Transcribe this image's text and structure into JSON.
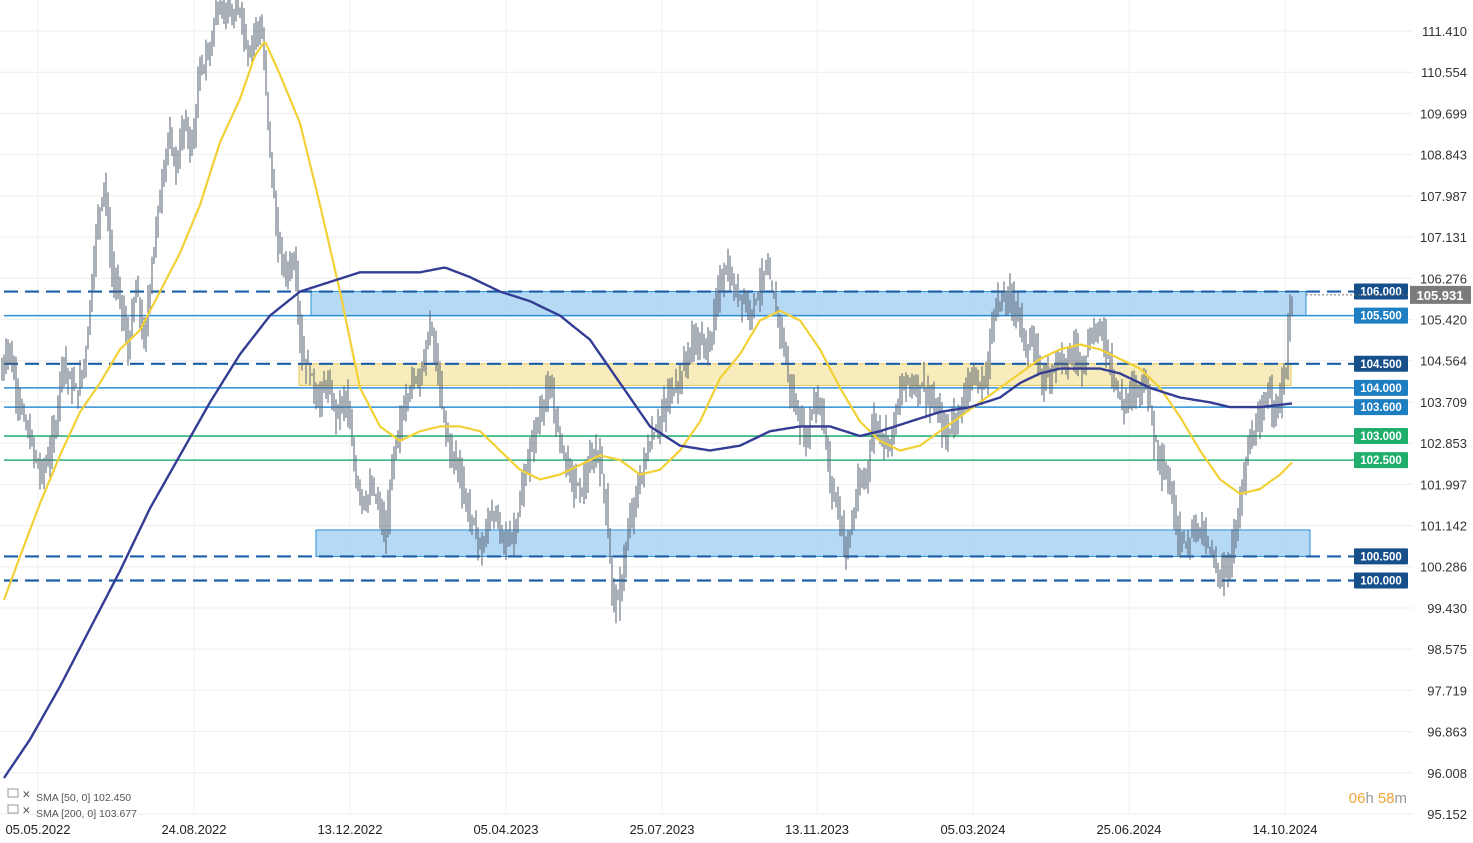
{
  "chart_data": {
    "type": "line",
    "title": "",
    "xlabel": "",
    "ylabel": "",
    "ylim": [
      95.152,
      111.8
    ],
    "y_axis_side": "right",
    "grid": true,
    "x_tick_labels": [
      "05.05.2022",
      "24.08.2022",
      "13.12.2022",
      "05.04.2023",
      "25.07.2023",
      "13.11.2023",
      "05.03.2024",
      "25.06.2024",
      "14.10.2024"
    ],
    "y_tick_labels": [
      111.41,
      110.554,
      109.699,
      108.843,
      107.987,
      107.131,
      106.276,
      105.42,
      104.564,
      103.709,
      102.853,
      101.997,
      101.142,
      100.286,
      99.43,
      98.575,
      97.719,
      96.863,
      96.008,
      95.152
    ],
    "y_tick_text": [
      "111.410",
      "110.554",
      "109.699",
      "108.843",
      "107.987",
      "107.131",
      "106.276",
      "105.420",
      "104.564",
      "103.709",
      "102.853",
      "101.997",
      "101.142",
      "100.286",
      "99.430",
      "98.575",
      "97.719",
      "96.863",
      "96.008",
      "95.152"
    ],
    "last_price": 105.931,
    "last_price_text": "105.931",
    "price_series": {
      "name": "",
      "anchors": [
        [
          0,
          104.2
        ],
        [
          8,
          104.9
        ],
        [
          16,
          104.0
        ],
        [
          24,
          103.3
        ],
        [
          32,
          102.8
        ],
        [
          40,
          102.2
        ],
        [
          48,
          102.5
        ],
        [
          56,
          103.3
        ],
        [
          62,
          104.6
        ],
        [
          70,
          104.1
        ],
        [
          78,
          103.9
        ],
        [
          86,
          104.8
        ],
        [
          96,
          107.2
        ],
        [
          104,
          108.3
        ],
        [
          112,
          106.4
        ],
        [
          120,
          105.9
        ],
        [
          128,
          104.8
        ],
        [
          136,
          106.1
        ],
        [
          144,
          104.9
        ],
        [
          152,
          106.6
        ],
        [
          160,
          108.0
        ],
        [
          168,
          109.2
        ],
        [
          176,
          108.6
        ],
        [
          184,
          109.5
        ],
        [
          192,
          109.0
        ],
        [
          200,
          110.6
        ],
        [
          208,
          110.9
        ],
        [
          216,
          111.8
        ],
        [
          224,
          112.0
        ],
        [
          232,
          111.6
        ],
        [
          240,
          111.9
        ],
        [
          248,
          110.9
        ],
        [
          256,
          111.5
        ],
        [
          262,
          111.3
        ],
        [
          270,
          108.9
        ],
        [
          278,
          106.9
        ],
        [
          286,
          106.4
        ],
        [
          294,
          106.7
        ],
        [
          302,
          104.7
        ],
        [
          310,
          104.3
        ],
        [
          318,
          103.7
        ],
        [
          326,
          104.1
        ],
        [
          336,
          103.5
        ],
        [
          346,
          103.8
        ],
        [
          356,
          102.1
        ],
        [
          364,
          101.6
        ],
        [
          372,
          101.9
        ],
        [
          380,
          101.4
        ],
        [
          386,
          100.9
        ],
        [
          392,
          102.4
        ],
        [
          398,
          103.0
        ],
        [
          406,
          103.8
        ],
        [
          414,
          104.2
        ],
        [
          422,
          104.4
        ],
        [
          430,
          105.3
        ],
        [
          436,
          104.6
        ],
        [
          442,
          103.6
        ],
        [
          450,
          102.7
        ],
        [
          458,
          102.4
        ],
        [
          466,
          101.6
        ],
        [
          474,
          101.1
        ],
        [
          482,
          100.6
        ],
        [
          490,
          101.4
        ],
        [
          498,
          101.2
        ],
        [
          506,
          100.8
        ],
        [
          514,
          101.0
        ],
        [
          522,
          101.8
        ],
        [
          530,
          102.7
        ],
        [
          538,
          103.3
        ],
        [
          546,
          103.9
        ],
        [
          552,
          103.8
        ],
        [
          558,
          103.1
        ],
        [
          566,
          102.5
        ],
        [
          574,
          102.0
        ],
        [
          582,
          101.9
        ],
        [
          590,
          102.4
        ],
        [
          598,
          102.7
        ],
        [
          606,
          101.6
        ],
        [
          612,
          99.8
        ],
        [
          618,
          99.5
        ],
        [
          624,
          100.4
        ],
        [
          630,
          101.2
        ],
        [
          638,
          101.9
        ],
        [
          646,
          102.6
        ],
        [
          654,
          103.1
        ],
        [
          662,
          103.4
        ],
        [
          670,
          103.9
        ],
        [
          678,
          104.1
        ],
        [
          686,
          104.6
        ],
        [
          694,
          105.0
        ],
        [
          702,
          104.9
        ],
        [
          710,
          104.9
        ],
        [
          718,
          106.0
        ],
        [
          726,
          106.5
        ],
        [
          734,
          106.0
        ],
        [
          742,
          105.9
        ],
        [
          750,
          105.6
        ],
        [
          758,
          106.0
        ],
        [
          766,
          106.5
        ],
        [
          774,
          105.8
        ],
        [
          782,
          105.1
        ],
        [
          790,
          104.0
        ],
        [
          798,
          103.4
        ],
        [
          806,
          102.9
        ],
        [
          814,
          103.8
        ],
        [
          822,
          103.5
        ],
        [
          830,
          102.1
        ],
        [
          838,
          101.5
        ],
        [
          846,
          100.6
        ],
        [
          852,
          101.2
        ],
        [
          858,
          101.9
        ],
        [
          866,
          102.2
        ],
        [
          874,
          103.3
        ],
        [
          882,
          103.0
        ],
        [
          890,
          102.9
        ],
        [
          898,
          103.7
        ],
        [
          906,
          104.2
        ],
        [
          914,
          104.0
        ],
        [
          922,
          104.1
        ],
        [
          930,
          103.7
        ],
        [
          938,
          103.5
        ],
        [
          946,
          103.0
        ],
        [
          954,
          103.4
        ],
        [
          962,
          103.6
        ],
        [
          970,
          104.3
        ],
        [
          978,
          104.0
        ],
        [
          986,
          104.2
        ],
        [
          994,
          105.7
        ],
        [
          1002,
          105.8
        ],
        [
          1010,
          105.9
        ],
        [
          1018,
          105.6
        ],
        [
          1026,
          104.8
        ],
        [
          1034,
          104.9
        ],
        [
          1042,
          104.2
        ],
        [
          1050,
          104.3
        ],
        [
          1058,
          104.7
        ],
        [
          1066,
          104.5
        ],
        [
          1074,
          104.8
        ],
        [
          1082,
          104.5
        ],
        [
          1090,
          105.0
        ],
        [
          1098,
          105.3
        ],
        [
          1106,
          104.9
        ],
        [
          1114,
          104.2
        ],
        [
          1122,
          103.6
        ],
        [
          1130,
          103.9
        ],
        [
          1138,
          104.0
        ],
        [
          1146,
          104.2
        ],
        [
          1154,
          103.0
        ],
        [
          1162,
          102.4
        ],
        [
          1170,
          101.9
        ],
        [
          1178,
          101.0
        ],
        [
          1186,
          100.7
        ],
        [
          1194,
          101.2
        ],
        [
          1202,
          101.0
        ],
        [
          1210,
          100.6
        ],
        [
          1218,
          100.2
        ],
        [
          1226,
          100.1
        ],
        [
          1232,
          100.7
        ],
        [
          1238,
          101.3
        ],
        [
          1244,
          102.2
        ],
        [
          1250,
          102.9
        ],
        [
          1256,
          103.1
        ],
        [
          1262,
          103.4
        ],
        [
          1268,
          104.0
        ],
        [
          1274,
          103.6
        ],
        [
          1280,
          103.8
        ],
        [
          1286,
          104.4
        ],
        [
          1290,
          105.7
        ],
        [
          1292,
          105.931
        ]
      ]
    },
    "sma_series": [
      {
        "name": "SMA [50, 0]",
        "legend_text": "SMA [50, 0] 102.450",
        "color": "#f2d136",
        "anchors": [
          [
            4,
            99.6
          ],
          [
            20,
            100.5
          ],
          [
            40,
            101.6
          ],
          [
            60,
            102.6
          ],
          [
            80,
            103.5
          ],
          [
            100,
            104.1
          ],
          [
            120,
            104.8
          ],
          [
            140,
            105.2
          ],
          [
            160,
            106.0
          ],
          [
            180,
            106.8
          ],
          [
            200,
            107.8
          ],
          [
            220,
            109.1
          ],
          [
            240,
            110.0
          ],
          [
            255,
            110.9
          ],
          [
            265,
            111.2
          ],
          [
            280,
            110.5
          ],
          [
            300,
            109.5
          ],
          [
            320,
            107.8
          ],
          [
            340,
            106.0
          ],
          [
            360,
            104.0
          ],
          [
            380,
            103.2
          ],
          [
            400,
            102.9
          ],
          [
            420,
            103.1
          ],
          [
            440,
            103.2
          ],
          [
            460,
            103.2
          ],
          [
            480,
            103.1
          ],
          [
            500,
            102.7
          ],
          [
            520,
            102.3
          ],
          [
            540,
            102.1
          ],
          [
            560,
            102.2
          ],
          [
            580,
            102.4
          ],
          [
            600,
            102.6
          ],
          [
            620,
            102.5
          ],
          [
            640,
            102.2
          ],
          [
            660,
            102.3
          ],
          [
            680,
            102.7
          ],
          [
            700,
            103.3
          ],
          [
            720,
            104.2
          ],
          [
            740,
            104.7
          ],
          [
            760,
            105.4
          ],
          [
            780,
            105.6
          ],
          [
            800,
            105.4
          ],
          [
            820,
            104.8
          ],
          [
            840,
            104.0
          ],
          [
            860,
            103.3
          ],
          [
            880,
            102.9
          ],
          [
            900,
            102.7
          ],
          [
            920,
            102.8
          ],
          [
            940,
            103.1
          ],
          [
            960,
            103.4
          ],
          [
            980,
            103.7
          ],
          [
            1000,
            104.0
          ],
          [
            1020,
            104.3
          ],
          [
            1040,
            104.6
          ],
          [
            1060,
            104.8
          ],
          [
            1080,
            104.9
          ],
          [
            1100,
            104.8
          ],
          [
            1120,
            104.6
          ],
          [
            1140,
            104.4
          ],
          [
            1160,
            104.0
          ],
          [
            1180,
            103.4
          ],
          [
            1200,
            102.7
          ],
          [
            1220,
            102.1
          ],
          [
            1240,
            101.8
          ],
          [
            1260,
            101.9
          ],
          [
            1280,
            102.2
          ],
          [
            1292,
            102.45
          ]
        ]
      },
      {
        "name": "SMA [200, 0]",
        "legend_text": "SMA [200, 0] 103.677",
        "color": "#343d94",
        "anchors": [
          [
            4,
            95.9
          ],
          [
            30,
            96.7
          ],
          [
            60,
            97.8
          ],
          [
            90,
            99.0
          ],
          [
            120,
            100.2
          ],
          [
            150,
            101.5
          ],
          [
            180,
            102.6
          ],
          [
            210,
            103.7
          ],
          [
            240,
            104.7
          ],
          [
            270,
            105.5
          ],
          [
            300,
            106.0
          ],
          [
            330,
            106.2
          ],
          [
            360,
            106.4
          ],
          [
            390,
            106.4
          ],
          [
            420,
            106.4
          ],
          [
            445,
            106.5
          ],
          [
            470,
            106.3
          ],
          [
            500,
            106.0
          ],
          [
            530,
            105.8
          ],
          [
            560,
            105.5
          ],
          [
            590,
            105.0
          ],
          [
            620,
            104.1
          ],
          [
            650,
            103.2
          ],
          [
            680,
            102.8
          ],
          [
            710,
            102.7
          ],
          [
            740,
            102.8
          ],
          [
            770,
            103.1
          ],
          [
            800,
            103.2
          ],
          [
            830,
            103.2
          ],
          [
            860,
            103.0
          ],
          [
            880,
            103.1
          ],
          [
            910,
            103.3
          ],
          [
            940,
            103.5
          ],
          [
            970,
            103.6
          ],
          [
            1000,
            103.8
          ],
          [
            1020,
            104.1
          ],
          [
            1040,
            104.3
          ],
          [
            1060,
            104.4
          ],
          [
            1080,
            104.4
          ],
          [
            1100,
            104.4
          ],
          [
            1120,
            104.3
          ],
          [
            1150,
            104.0
          ],
          [
            1180,
            103.8
          ],
          [
            1210,
            103.7
          ],
          [
            1230,
            103.6
          ],
          [
            1260,
            103.6
          ],
          [
            1292,
            103.677
          ]
        ]
      }
    ],
    "horizontal_levels": [
      {
        "value": 106.0,
        "label": "106.000",
        "style": "dashed",
        "color": "#1a5fa8",
        "label_bg": "#164f8a"
      },
      {
        "value": 105.5,
        "label": "105.500",
        "style": "solid",
        "color": "#2b8fd6",
        "label_bg": "#1d7ec2"
      },
      {
        "value": 104.5,
        "label": "104.500",
        "style": "dashed",
        "color": "#1a5fa8",
        "label_bg": "#164f8a"
      },
      {
        "value": 104.0,
        "label": "104.000",
        "style": "solid",
        "color": "#2b8fd6",
        "label_bg": "#1d7ec2"
      },
      {
        "value": 103.6,
        "label": "103.600",
        "style": "solid",
        "color": "#2b8fd6",
        "label_bg": "#1d7ec2"
      },
      {
        "value": 103.0,
        "label": "103.000",
        "style": "solid",
        "color": "#2db37a",
        "label_bg": "#1fae6b"
      },
      {
        "value": 102.5,
        "label": "102.500",
        "style": "solid",
        "color": "#2db37a",
        "label_bg": "#1fae6b"
      },
      {
        "value": 100.5,
        "label": "100.500",
        "style": "dashed",
        "color": "#1a5fa8",
        "label_bg": "#164f8a"
      },
      {
        "value": 100.0,
        "label": "100.000",
        "style": "dashed",
        "color": "#1a5fa8",
        "label_bg": "#164f8a"
      }
    ],
    "zones": [
      {
        "name": "resistance-zone",
        "y_from": 105.5,
        "y_to": 106.0,
        "fill": "#a9d4f5",
        "stroke": "#2b8fd6"
      },
      {
        "name": "middle-zone",
        "y_from": 104.05,
        "y_to": 104.5,
        "fill": "#f7e9b0",
        "stroke": "#e6c65a"
      },
      {
        "name": "support-zone",
        "y_from": 100.5,
        "y_to": 101.05,
        "fill": "#a9d4f5",
        "stroke": "#2b8fd6"
      }
    ],
    "timer": {
      "hours": "06",
      "h": "h",
      "minutes": "58",
      "m": "m"
    }
  }
}
